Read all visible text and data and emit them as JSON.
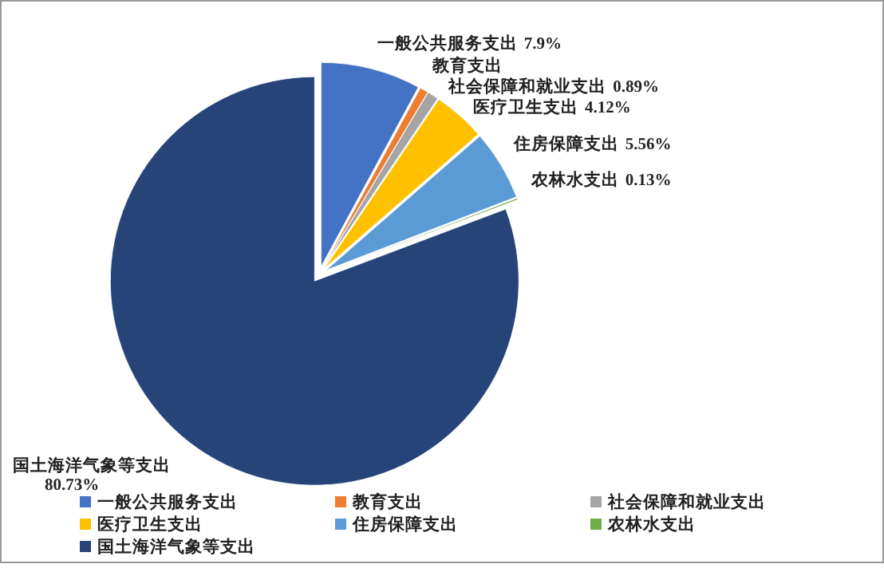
{
  "chart_data": {
    "type": "pie",
    "categories": [
      "一般公共服务支出",
      "教育支出",
      "社会保障和就业支出",
      "医疗卫生支出",
      "住房保障支出",
      "农林水支出",
      "国土海洋气象等支出"
    ],
    "values": [
      7.9,
      0.67,
      0.89,
      4.12,
      5.56,
      0.13,
      80.73
    ],
    "value_labels": [
      "7.9%",
      null,
      "0.89%",
      "4.12%",
      "5.56%",
      "0.13%",
      "80.73%"
    ],
    "colors": [
      "#4472c4",
      "#ed7d31",
      "#a5a5a5",
      "#ffc000",
      "#5b9bd5",
      "#70ad47",
      "#264478"
    ],
    "legend": "bottom"
  }
}
